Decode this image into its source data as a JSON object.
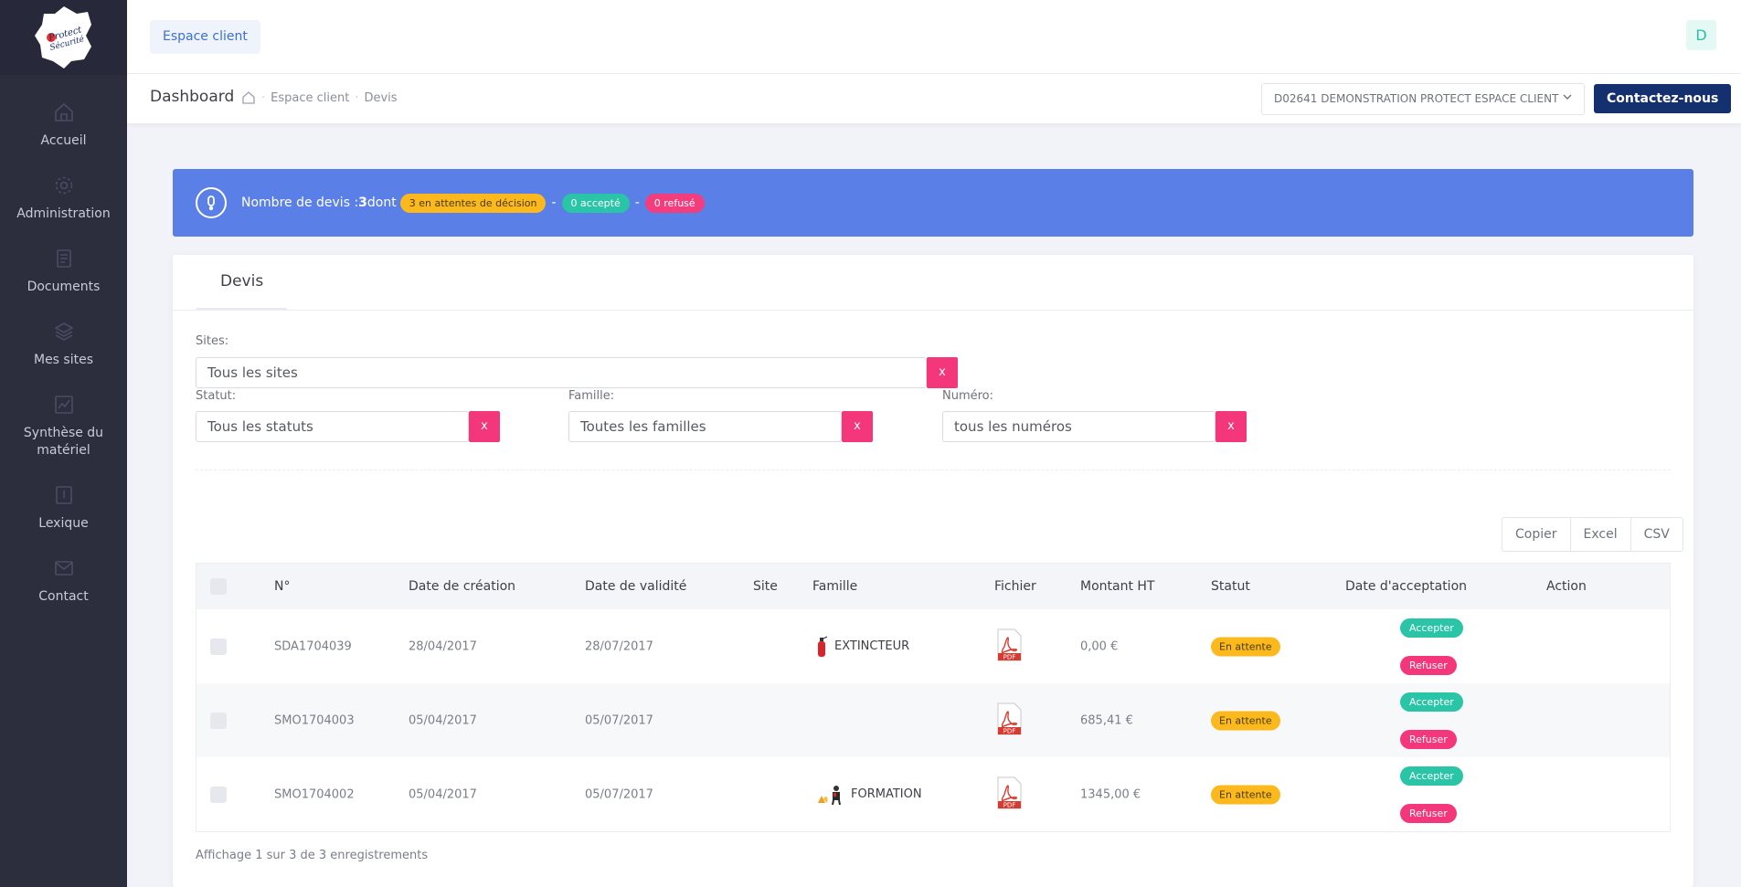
{
  "header": {
    "espace_client": "Espace client",
    "avatar_letter": "D"
  },
  "sidebar": {
    "items": [
      {
        "label": "Accueil",
        "icon": "home-icon"
      },
      {
        "label": "Administration",
        "icon": "gear-icon"
      },
      {
        "label": "Documents",
        "icon": "document-icon"
      },
      {
        "label": "Mes sites",
        "icon": "layers-icon"
      },
      {
        "label": "Synthèse du matériel",
        "icon": "chart-icon"
      },
      {
        "label": "Lexique",
        "icon": "book-icon"
      },
      {
        "label": "Contact",
        "icon": "mail-icon"
      }
    ]
  },
  "subheader": {
    "title": "Dashboard",
    "breadcrumb": [
      "Espace client",
      "Devis"
    ],
    "client_selected": "D02641 DEMONSTRATION PROTECT ESPACE CLIENT",
    "contact_button": "Contactez-nous"
  },
  "alert": {
    "prefix": "Nombre de devis : ",
    "count": "3",
    "dont": " dont",
    "pending": "3 en attentes de décision",
    "accepted": "0 accepté",
    "refused": "0 refusé",
    "sep": "-"
  },
  "card": {
    "tab": "Devis",
    "filters": {
      "sites_label": "Sites:",
      "sites_value": "Tous les sites",
      "statut_label": "Statut:",
      "statut_value": "Tous les statuts",
      "famille_label": "Famille:",
      "famille_value": "Toutes les familles",
      "numero_label": "Numéro:",
      "numero_value": "tous les numéros",
      "clear": "x"
    },
    "export": [
      "Copier",
      "Excel",
      "CSV"
    ],
    "columns": [
      "N°",
      "Date de création",
      "Date de validité",
      "Site",
      "Famille",
      "Fichier",
      "Montant HT",
      "Statut",
      "Date d'acceptation",
      "Action"
    ],
    "rows": [
      {
        "numero": "SDA1704039",
        "creation": "28/04/2017",
        "validite": "28/07/2017",
        "site": "",
        "famille": "EXTINCTEUR",
        "famille_icon": "extinguisher-icon",
        "fichier": "PDF",
        "montant": "0,00 €",
        "statut": "En attente",
        "acceptation": "",
        "accept": "Accepter",
        "refuse": "Refuser"
      },
      {
        "numero": "SMO1704003",
        "creation": "05/04/2017",
        "validite": "05/07/2017",
        "site": "",
        "famille": "",
        "famille_icon": "",
        "fichier": "PDF",
        "montant": "685,41 €",
        "statut": "En attente",
        "acceptation": "",
        "accept": "Accepter",
        "refuse": "Refuser"
      },
      {
        "numero": "SMO1704002",
        "creation": "05/04/2017",
        "validite": "05/07/2017",
        "site": "",
        "famille": "FORMATION",
        "famille_icon": "training-icon",
        "fichier": "PDF",
        "montant": "1345,00 €",
        "statut": "En attente",
        "acceptation": "",
        "accept": "Accepter",
        "refuse": "Refuser"
      }
    ],
    "info": "Affichage 1 sur 3 de 3 enregistrements"
  }
}
